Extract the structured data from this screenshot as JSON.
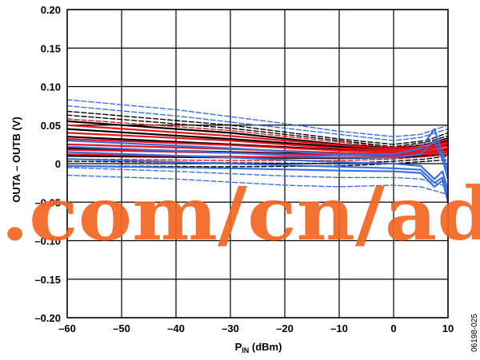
{
  "chart_data": {
    "type": "line",
    "xlabel": "P",
    "xlabel_sub": "IN",
    "xlabel_unit": " (dBm)",
    "ylabel": "OUTA – OUTB (V)",
    "xlim": [
      -60,
      10
    ],
    "ylim": [
      -0.2,
      0.2
    ],
    "xticks": [
      -60,
      -50,
      -40,
      -30,
      -20,
      -10,
      0,
      10
    ],
    "xtick_labels": [
      "–60",
      "–50",
      "–40",
      "–30",
      "–20",
      "–10",
      "0",
      "10"
    ],
    "yticks": [
      0.2,
      0.15,
      0.1,
      0.05,
      0,
      -0.05,
      -0.1,
      -0.15,
      -0.2
    ],
    "ytick_labels": [
      "0.20",
      "0.15",
      "0.10",
      "0.05",
      "0",
      "–0.05",
      "–0.10",
      "–0.15",
      "–0.20"
    ],
    "grid": true,
    "colors": {
      "black": "#000000",
      "red": "#e8141b",
      "blue": "#3a6fe0",
      "watermark": "#f26522"
    },
    "series": [
      {
        "color": "black",
        "dash": false,
        "points": [
          [
            -60,
            0.055
          ],
          [
            -30,
            0.04
          ],
          [
            -10,
            0.025
          ],
          [
            0,
            0.02
          ],
          [
            6,
            0.025
          ],
          [
            10,
            0.033
          ]
        ]
      },
      {
        "color": "black",
        "dash": false,
        "points": [
          [
            -60,
            0.045
          ],
          [
            -30,
            0.032
          ],
          [
            -10,
            0.022
          ],
          [
            0,
            0.018
          ],
          [
            6,
            0.022
          ],
          [
            10,
            0.03
          ]
        ]
      },
      {
        "color": "black",
        "dash": false,
        "points": [
          [
            -60,
            0.035
          ],
          [
            -30,
            0.025
          ],
          [
            -10,
            0.018
          ],
          [
            0,
            0.016
          ],
          [
            6,
            0.02
          ],
          [
            10,
            0.025
          ]
        ]
      },
      {
        "color": "black",
        "dash": false,
        "points": [
          [
            -60,
            0.02
          ],
          [
            -30,
            0.015
          ],
          [
            -10,
            0.012
          ],
          [
            0,
            0.012
          ],
          [
            6,
            0.015
          ],
          [
            10,
            0.018
          ]
        ]
      },
      {
        "color": "black",
        "dash": false,
        "points": [
          [
            -60,
            0.01
          ],
          [
            -30,
            0.008
          ],
          [
            -10,
            0.007
          ],
          [
            0,
            0.008
          ],
          [
            6,
            0.01
          ],
          [
            10,
            0.012
          ]
        ]
      },
      {
        "color": "black",
        "dash": true,
        "points": [
          [
            -60,
            0.068
          ],
          [
            -30,
            0.05
          ],
          [
            -10,
            0.032
          ],
          [
            0,
            0.025
          ],
          [
            6,
            0.03
          ],
          [
            10,
            0.04
          ]
        ]
      },
      {
        "color": "black",
        "dash": true,
        "points": [
          [
            -60,
            0.063
          ],
          [
            -30,
            0.046
          ],
          [
            -10,
            0.03
          ],
          [
            0,
            0.022
          ],
          [
            6,
            0.028
          ],
          [
            10,
            0.036
          ]
        ]
      },
      {
        "color": "black",
        "dash": true,
        "points": [
          [
            -60,
            0.003
          ],
          [
            -30,
            0.001
          ],
          [
            -10,
            0.0
          ],
          [
            0,
            0.003
          ],
          [
            6,
            0.006
          ],
          [
            10,
            0.01
          ]
        ]
      },
      {
        "color": "black",
        "dash": true,
        "points": [
          [
            -60,
            -0.003
          ],
          [
            -30,
            -0.004
          ],
          [
            -10,
            -0.003
          ],
          [
            0,
            0.0
          ],
          [
            6,
            0.003
          ],
          [
            10,
            0.005
          ]
        ]
      },
      {
        "color": "red",
        "dash": false,
        "points": [
          [
            -60,
            0.05
          ],
          [
            -30,
            0.036
          ],
          [
            -10,
            0.024
          ],
          [
            0,
            0.019
          ],
          [
            6,
            0.022
          ],
          [
            10,
            0.028
          ]
        ]
      },
      {
        "color": "red",
        "dash": false,
        "points": [
          [
            -60,
            0.04
          ],
          [
            -30,
            0.03
          ],
          [
            -10,
            0.02
          ],
          [
            0,
            0.017
          ],
          [
            6,
            0.02
          ],
          [
            10,
            0.026
          ]
        ]
      },
      {
        "color": "red",
        "dash": false,
        "points": [
          [
            -60,
            0.032
          ],
          [
            -30,
            0.024
          ],
          [
            -10,
            0.017
          ],
          [
            0,
            0.015
          ],
          [
            6,
            0.018
          ],
          [
            10,
            0.023
          ]
        ]
      },
      {
        "color": "red",
        "dash": false,
        "points": [
          [
            -60,
            0.025
          ],
          [
            -30,
            0.019
          ],
          [
            -10,
            0.014
          ],
          [
            0,
            0.013
          ],
          [
            6,
            0.016
          ],
          [
            10,
            0.02
          ]
        ]
      },
      {
        "color": "red",
        "dash": false,
        "points": [
          [
            -60,
            0.018
          ],
          [
            -30,
            0.014
          ],
          [
            -10,
            0.011
          ],
          [
            0,
            0.011
          ],
          [
            6,
            0.014
          ],
          [
            10,
            0.017
          ]
        ]
      },
      {
        "color": "red",
        "dash": false,
        "points": [
          [
            -60,
            0.012
          ],
          [
            -30,
            0.009
          ],
          [
            -10,
            0.008
          ],
          [
            0,
            0.009
          ],
          [
            6,
            0.012
          ],
          [
            10,
            0.015
          ]
        ]
      },
      {
        "color": "red",
        "dash": true,
        "points": [
          [
            -60,
            0.058
          ],
          [
            -30,
            0.043
          ],
          [
            -10,
            0.028
          ],
          [
            0,
            0.021
          ],
          [
            6,
            0.025
          ],
          [
            10,
            0.032
          ]
        ]
      },
      {
        "color": "red",
        "dash": true,
        "points": [
          [
            -60,
            0.006
          ],
          [
            -30,
            0.004
          ],
          [
            -10,
            0.004
          ],
          [
            0,
            0.006
          ],
          [
            6,
            0.009
          ],
          [
            10,
            0.012
          ]
        ]
      },
      {
        "color": "blue",
        "dash": false,
        "points": [
          [
            -60,
            0.03
          ],
          [
            -30,
            0.02
          ],
          [
            -10,
            0.012
          ],
          [
            0,
            0.012
          ],
          [
            5,
            0.02
          ],
          [
            7.5,
            0.045
          ],
          [
            9,
            0.012
          ],
          [
            10,
            -0.01
          ]
        ]
      },
      {
        "color": "blue",
        "dash": false,
        "points": [
          [
            -60,
            0.022
          ],
          [
            -30,
            0.014
          ],
          [
            -10,
            0.008
          ],
          [
            0,
            0.008
          ],
          [
            5,
            0.012
          ],
          [
            7.5,
            0.03
          ],
          [
            9,
            0.005
          ],
          [
            10,
            -0.02
          ]
        ]
      },
      {
        "color": "blue",
        "dash": false,
        "points": [
          [
            -60,
            0.015
          ],
          [
            -30,
            0.008
          ],
          [
            -10,
            0.002
          ],
          [
            0,
            0.0
          ],
          [
            5,
            -0.003
          ],
          [
            7.5,
            -0.02
          ],
          [
            9,
            -0.01
          ],
          [
            10,
            -0.035
          ]
        ]
      },
      {
        "color": "blue",
        "dash": false,
        "points": [
          [
            -60,
            0.006
          ],
          [
            -30,
            0.0
          ],
          [
            -10,
            -0.004
          ],
          [
            0,
            -0.006
          ],
          [
            5,
            -0.008
          ],
          [
            7.5,
            -0.025
          ],
          [
            9,
            -0.018
          ],
          [
            10,
            -0.045
          ]
        ]
      },
      {
        "color": "blue",
        "dash": false,
        "points": [
          [
            -60,
            -0.003
          ],
          [
            -30,
            -0.006
          ],
          [
            -10,
            -0.009
          ],
          [
            0,
            -0.01
          ],
          [
            5,
            -0.012
          ],
          [
            7.5,
            -0.03
          ],
          [
            9,
            -0.022
          ],
          [
            10,
            -0.05
          ]
        ]
      },
      {
        "color": "blue",
        "dash": true,
        "points": [
          [
            -60,
            0.083
          ],
          [
            -40,
            0.07
          ],
          [
            -20,
            0.052
          ],
          [
            -10,
            0.042
          ],
          [
            0,
            0.035
          ],
          [
            5,
            0.038
          ],
          [
            10,
            0.05
          ]
        ]
      },
      {
        "color": "blue",
        "dash": true,
        "points": [
          [
            -60,
            0.075
          ],
          [
            -40,
            0.062
          ],
          [
            -20,
            0.046
          ],
          [
            -10,
            0.038
          ],
          [
            0,
            0.03
          ],
          [
            5,
            0.034
          ],
          [
            10,
            0.045
          ]
        ]
      },
      {
        "color": "blue",
        "dash": true,
        "points": [
          [
            -60,
            -0.005
          ],
          [
            -40,
            -0.01
          ],
          [
            -20,
            -0.016
          ],
          [
            -10,
            -0.018
          ],
          [
            0,
            -0.018
          ],
          [
            5,
            -0.02
          ],
          [
            10,
            -0.03
          ]
        ]
      },
      {
        "color": "blue",
        "dash": true,
        "points": [
          [
            -60,
            -0.015
          ],
          [
            -40,
            -0.02
          ],
          [
            -20,
            -0.028
          ],
          [
            -10,
            -0.03
          ],
          [
            0,
            -0.028
          ],
          [
            5,
            -0.03
          ],
          [
            10,
            -0.04
          ]
        ]
      }
    ]
  },
  "watermark_text": ".com/cn/ad",
  "figure_id": "06198-025"
}
